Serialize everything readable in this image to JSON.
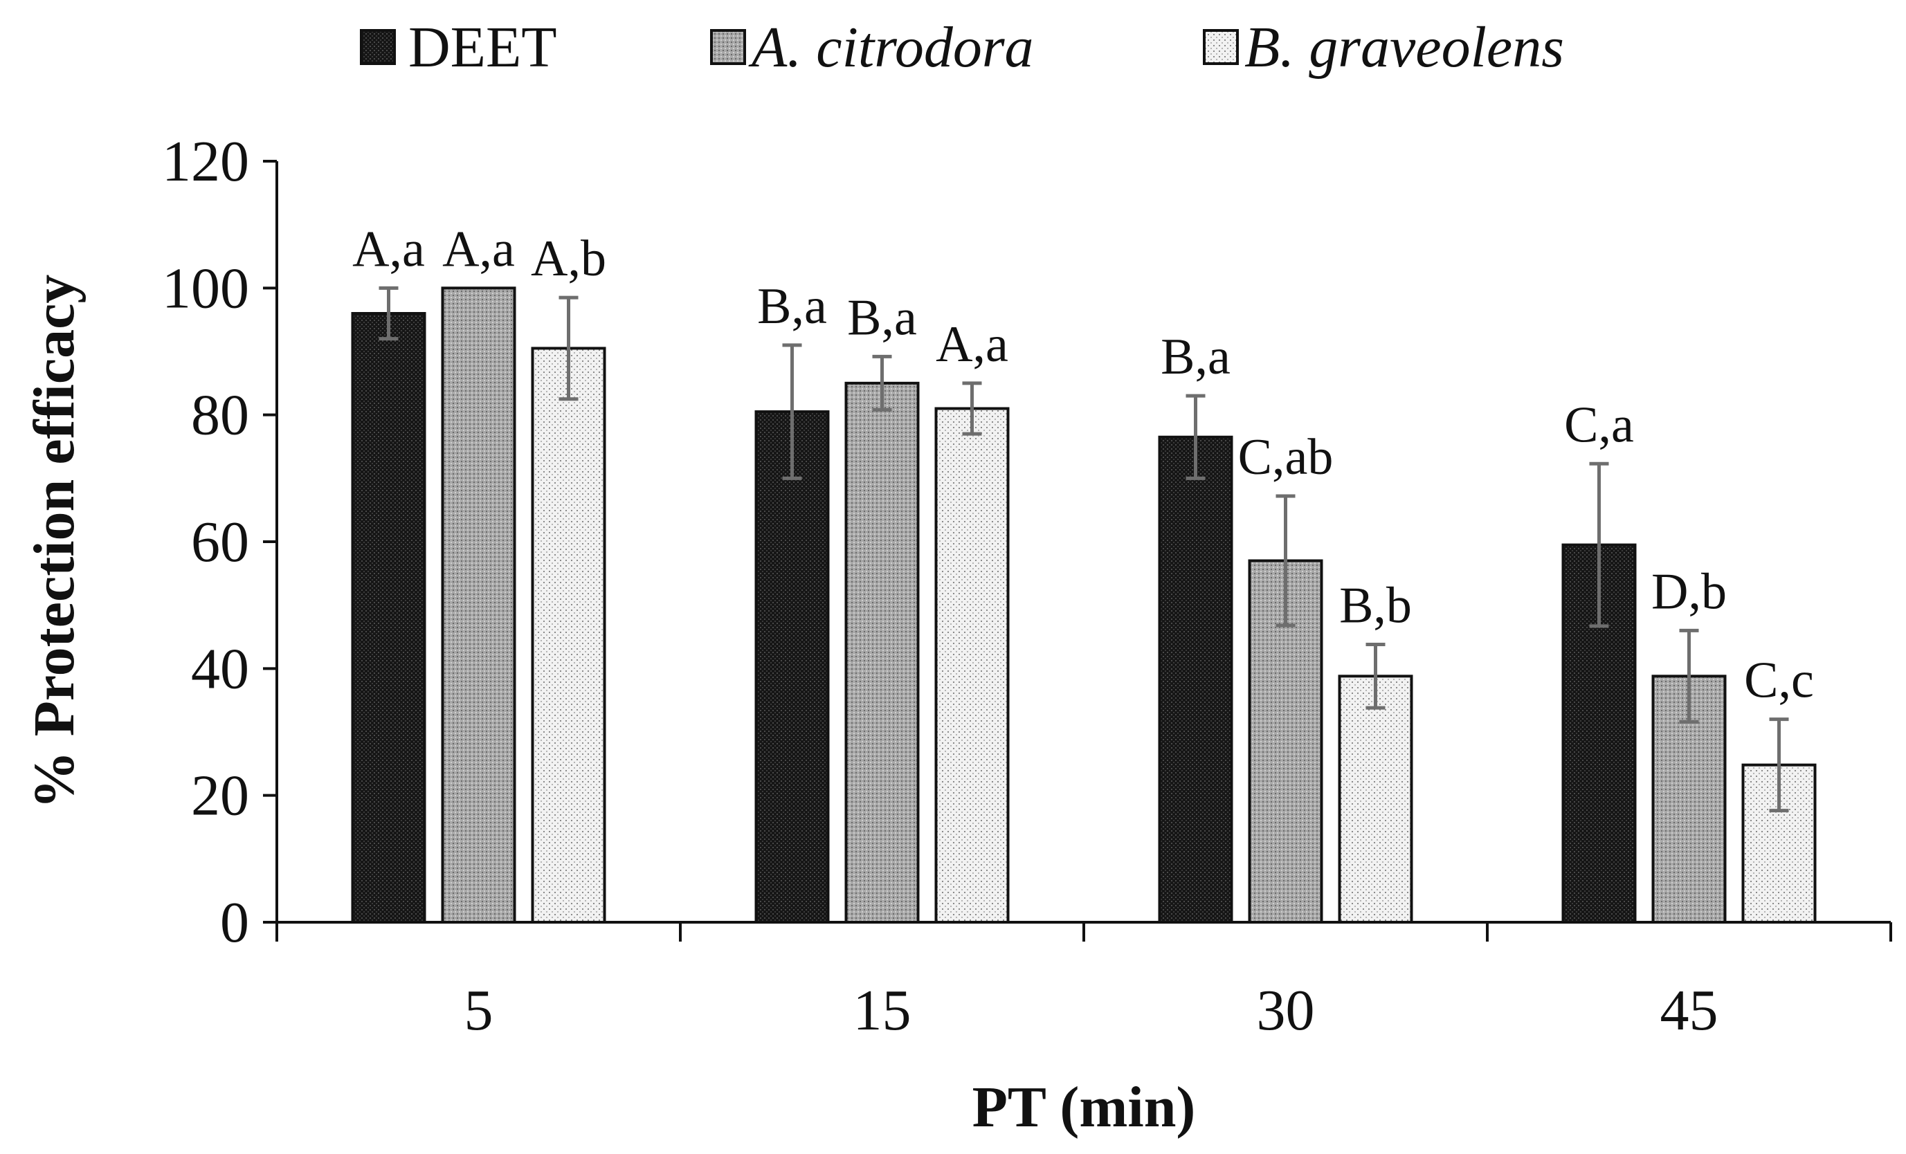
{
  "chart_data": {
    "type": "bar",
    "title": "",
    "xlabel": "PT (min)",
    "ylabel": "% Protection efficacy",
    "categories": [
      "5",
      "15",
      "30",
      "45"
    ],
    "ylim": [
      0,
      120
    ],
    "yticks": [
      0,
      20,
      40,
      60,
      80,
      100,
      120
    ],
    "legend_position": "top",
    "series": [
      {
        "name": "DEET",
        "italic": false,
        "pattern": "dark",
        "values": [
          96,
          80.5,
          76.5,
          59.5
        ],
        "errors": [
          4,
          10.5,
          6.5,
          12.8
        ],
        "labels": [
          "A,a",
          "B,a",
          "B,a",
          "C,a"
        ]
      },
      {
        "name": "A. citrodora",
        "italic": true,
        "pattern": "medium",
        "values": [
          100,
          85,
          57,
          38.8
        ],
        "errors": [
          0,
          4.2,
          10.2,
          7.2
        ],
        "labels": [
          "A,a",
          "B,a",
          "C,ab",
          "D,b"
        ]
      },
      {
        "name": "B. graveolens",
        "italic": true,
        "pattern": "light",
        "values": [
          90.5,
          81,
          38.8,
          24.8
        ],
        "errors": [
          8,
          4,
          5,
          7.2
        ],
        "labels": [
          "A,b",
          "A,a",
          "B,b",
          "C,c"
        ]
      }
    ]
  }
}
